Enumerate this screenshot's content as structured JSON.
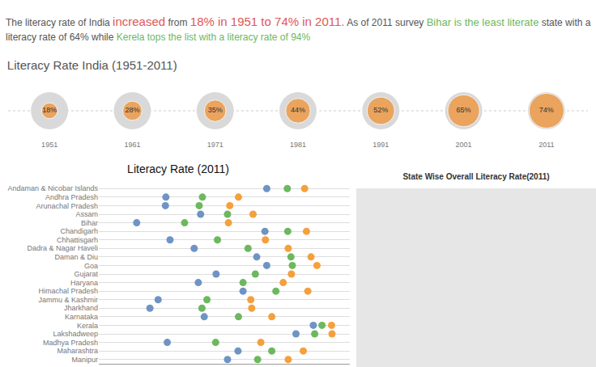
{
  "header": {
    "segments": [
      {
        "text": "The literacy rate of India ",
        "style": "plain"
      },
      {
        "text": "increased",
        "style": "red-large"
      },
      {
        "text": " from ",
        "style": "plain"
      },
      {
        "text": "18% in 1951 to 74% in 2011.",
        "style": "red-large"
      },
      {
        "text": " As of 2011 survey ",
        "style": "plain"
      },
      {
        "text": "Bihar is the least literate",
        "style": "green-large"
      },
      {
        "text": " state with a literacy rate of 64% while ",
        "style": "plain"
      },
      {
        "text": "Kerela tops the list with a literacy rate of 94%",
        "style": "green"
      }
    ]
  },
  "chart_data": [
    {
      "type": "bubble",
      "title": "Literacy Rate India (1951-2011)",
      "categories": [
        "1951",
        "1961",
        "1971",
        "1981",
        "1991",
        "2001",
        "2011"
      ],
      "values": [
        18,
        28,
        35,
        44,
        52,
        65,
        74
      ],
      "value_labels": [
        "18%",
        "28%",
        "35%",
        "44%",
        "52%",
        "65%",
        "74%"
      ],
      "data_labels": true,
      "color": "#f28e2b"
    },
    {
      "type": "dot",
      "title": "Literacy Rate (2011)",
      "categories": [
        "Andaman & Nicobar Islands",
        "Andhra Pradesh",
        "Arunachal Pradesh",
        "Assam",
        "Bihar",
        "Chandigarh",
        "Chhattisgarh",
        "Dadra & Nagar Haveli",
        "Daman & Diu",
        "Goa",
        "Gujarat",
        "Haryana",
        "Himachal Pradesh",
        "Jammu & Kashmir",
        "Jharkhand",
        "Karnataka",
        "Kerala",
        "Lakshadweep",
        "Madhya Pradesh",
        "Maharashtra",
        "Manipur"
      ],
      "series": [
        {
          "color": "#6f94c4",
          "values": [
            81.8,
            59.7,
            59.6,
            67.3,
            53.3,
            81.4,
            60.6,
            65.9,
            79.6,
            81.8,
            70.7,
            66.8,
            76.6,
            58.0,
            56.2,
            68.1,
            92.0,
            88.2,
            60.0,
            75.5,
            73.2
          ]
        },
        {
          "color": "#6cb85e",
          "values": [
            86.3,
            67.7,
            67.0,
            73.2,
            63.8,
            86.4,
            71.0,
            77.7,
            87.1,
            87.4,
            79.3,
            76.6,
            83.8,
            68.7,
            67.6,
            75.6,
            93.9,
            92.3,
            70.6,
            82.9,
            79.8
          ]
        },
        {
          "color": "#f5a03c",
          "values": [
            90.1,
            75.6,
            73.7,
            78.8,
            73.4,
            90.5,
            81.5,
            86.5,
            91.5,
            92.8,
            87.2,
            85.4,
            90.8,
            78.3,
            78.5,
            82.9,
            96.0,
            96.1,
            80.5,
            89.8,
            86.5
          ]
        }
      ],
      "xlim": [
        45,
        100
      ],
      "orientation": "horizontal",
      "tick_labels": "y",
      "grid": true
    },
    {
      "type": "map",
      "title": "State Wise Overall Literacy Rate(2011)"
    }
  ]
}
